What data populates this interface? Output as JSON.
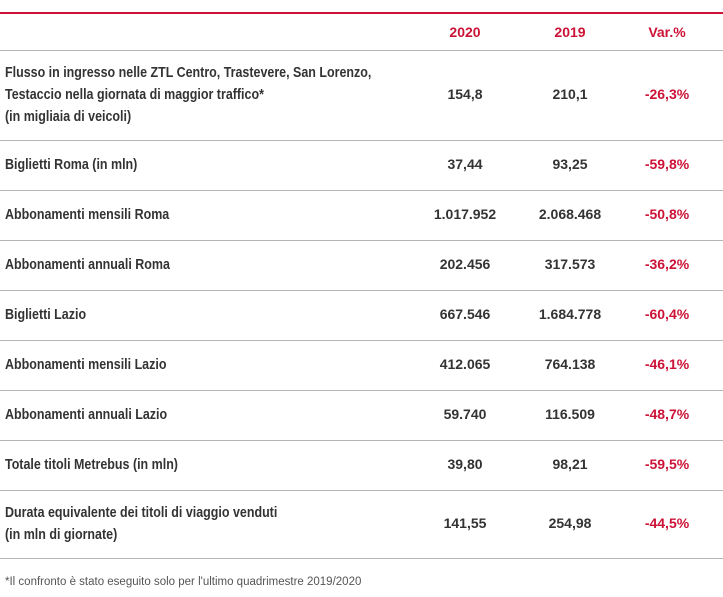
{
  "table": {
    "columns": [
      "2020",
      "2019",
      "Var.%"
    ],
    "rows": [
      {
        "label": [
          "Flusso in ingresso nelle ZTL Centro, Trastevere, San Lorenzo,",
          "Testaccio nella giornata di maggior traffico*",
          "(in migliaia di veicoli)"
        ],
        "cells": [
          "154,8",
          "210,1",
          "-26,3%"
        ]
      },
      {
        "label": [
          "Biglietti Roma (in mln)"
        ],
        "cells": [
          "37,44",
          "93,25",
          "-59,8%"
        ]
      },
      {
        "label": [
          "Abbonamenti mensili Roma"
        ],
        "cells": [
          "1.017.952",
          "2.068.468",
          "-50,8%"
        ]
      },
      {
        "label": [
          "Abbonamenti annuali Roma"
        ],
        "cells": [
          "202.456",
          "317.573",
          "-36,2%"
        ]
      },
      {
        "label": [
          "Biglietti Lazio"
        ],
        "cells": [
          "667.546",
          "1.684.778",
          "-60,4%"
        ]
      },
      {
        "label": [
          "Abbonamenti mensili Lazio"
        ],
        "cells": [
          "412.065",
          "764.138",
          "-46,1%"
        ]
      },
      {
        "label": [
          "Abbonamenti annuali Lazio"
        ],
        "cells": [
          "59.740",
          "116.509",
          "-48,7%"
        ]
      },
      {
        "label": [
          "Totale titoli Metrebus (in mln)"
        ],
        "cells": [
          "39,80",
          "98,21",
          "-59,5%"
        ]
      },
      {
        "label": [
          "Durata equivalente dei titoli di viaggio venduti",
          "(in mln di giornate)"
        ],
        "cells": [
          "141,55",
          "254,98",
          "-44,5%"
        ]
      }
    ]
  },
  "footnote": "*Il confronto è stato eseguito solo per l'ultimo quadrimestre 2019/2020"
}
